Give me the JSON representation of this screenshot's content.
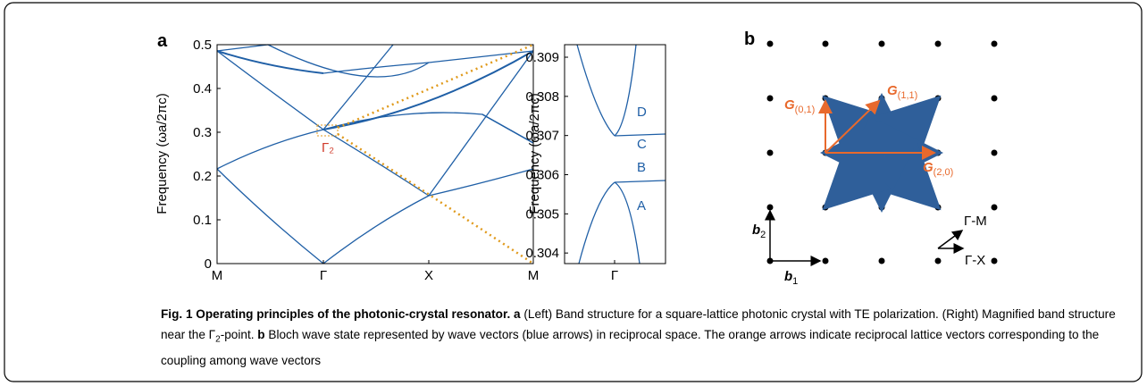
{
  "panel_a": {
    "label": "a",
    "ylabel": "Frequency (ωa/2πc)",
    "ylim": [
      0,
      0.5
    ],
    "yticks": [
      0,
      0.1,
      0.2,
      0.3,
      0.4,
      0.5
    ],
    "categories": [
      "M",
      "Γ",
      "X",
      "M"
    ],
    "annotation": "Γ₂"
  },
  "panel_a_inset": {
    "ylabel": "Frequency (ωa/2πc)",
    "ylim": [
      0.30373,
      0.30932
    ],
    "yticks": [
      0.304,
      0.305,
      0.306,
      0.307,
      0.308,
      0.309
    ],
    "categories": [
      "Γ"
    ],
    "band_labels": [
      "A",
      "B",
      "C",
      "D"
    ]
  },
  "panel_b": {
    "label": "b",
    "vectors": [
      {
        "main": "G",
        "sub": "(0,1)"
      },
      {
        "main": "G",
        "sub": "(1,1)"
      },
      {
        "main": "G",
        "sub": "(2,0)"
      }
    ],
    "basis": [
      {
        "main": "b",
        "sub": "1"
      },
      {
        "main": "b",
        "sub": "2"
      }
    ],
    "directions": [
      "Γ-M",
      "Γ-X"
    ]
  },
  "caption": {
    "title": "Fig. 1 Operating principles of the photonic-crystal resonator.",
    "a_label": "a",
    "a_text": "(Left) Band structure for a square-lattice photonic crystal with TE polarization. (Right) Magnified band structure near the Γ",
    "a_sub": "2",
    "a_rest": "-point.",
    "b_label": "b",
    "b_text": "Bloch wave state represented by wave vectors (blue arrows) in reciprocal space. The orange arrows indicate reciprocal lattice vectors corresponding to the coupling among wave vectors"
  }
}
